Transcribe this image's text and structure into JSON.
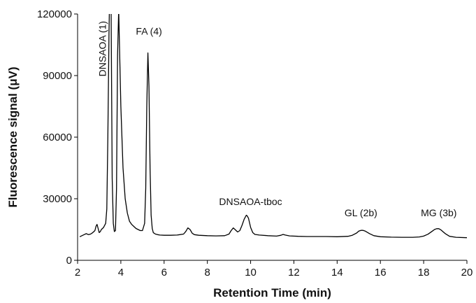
{
  "chart_data": {
    "type": "line",
    "title": "",
    "xlabel": "Retention Time (min)",
    "ylabel": "Fluorescence signal (μV)",
    "xlim": [
      2,
      20
    ],
    "ylim": [
      0,
      120000
    ],
    "x_ticks": [
      2,
      4,
      6,
      8,
      10,
      12,
      14,
      16,
      18,
      20
    ],
    "y_ticks": [
      0,
      30000,
      60000,
      90000,
      120000
    ],
    "x_tick_labels": [
      "2",
      "4",
      "6",
      "8",
      "10",
      "12",
      "14",
      "16",
      "18",
      "20"
    ],
    "y_tick_labels": [
      "0",
      "30000",
      "60000",
      "90000",
      "120000"
    ],
    "grid": false,
    "legend": "none",
    "line_color": "#000000",
    "series": [
      {
        "x": [
          2.1,
          2.2,
          2.3,
          2.4,
          2.5,
          2.6,
          2.7,
          2.8,
          2.85,
          2.9,
          2.95,
          3.0,
          3.05,
          3.1,
          3.2,
          3.3,
          3.35,
          3.4,
          3.45,
          3.5,
          3.55,
          3.6,
          3.65,
          3.7,
          3.75,
          3.8,
          3.85,
          3.9,
          4.0,
          4.1,
          4.2,
          4.3,
          4.4,
          4.5,
          4.6,
          4.7,
          4.8,
          4.9,
          5.0,
          5.1,
          5.15,
          5.2,
          5.25,
          5.3,
          5.35,
          5.4,
          5.45,
          5.5,
          5.6,
          5.7,
          5.8,
          6.0,
          6.3,
          6.6,
          6.9,
          7.0,
          7.1,
          7.2,
          7.3,
          7.4,
          7.6,
          8.0,
          8.4,
          8.8,
          9.0,
          9.1,
          9.2,
          9.3,
          9.4,
          9.5,
          9.6,
          9.7,
          9.8,
          9.85,
          9.9,
          10.0,
          10.1,
          10.2,
          10.4,
          10.8,
          11.2,
          11.4,
          11.5,
          11.6,
          11.8,
          12.2,
          12.6,
          13.0,
          13.5,
          14.0,
          14.5,
          14.7,
          14.9,
          15.0,
          15.1,
          15.2,
          15.3,
          15.5,
          15.7,
          16.0,
          16.5,
          17.0,
          17.5,
          17.8,
          18.0,
          18.2,
          18.4,
          18.5,
          18.6,
          18.7,
          18.8,
          19.0,
          19.2,
          19.5,
          20.0
        ],
        "y": [
          11500,
          12000,
          12500,
          13000,
          12500,
          12800,
          13500,
          14500,
          16500,
          17500,
          15500,
          13500,
          14000,
          15000,
          16000,
          18000,
          25000,
          60000,
          110000,
          140000,
          120000,
          40000,
          18000,
          14000,
          14500,
          35000,
          100000,
          122000,
          75000,
          45000,
          30000,
          23000,
          19000,
          17500,
          16500,
          15500,
          15000,
          14500,
          14500,
          18000,
          35000,
          75000,
          101000,
          85000,
          45000,
          22000,
          15500,
          13500,
          12800,
          12500,
          12300,
          12200,
          12200,
          12300,
          12800,
          14000,
          15800,
          15000,
          13200,
          12500,
          12200,
          12000,
          11900,
          12000,
          12800,
          14500,
          15800,
          14800,
          13800,
          14500,
          17000,
          20000,
          22000,
          21500,
          20500,
          16000,
          13500,
          12600,
          12300,
          12000,
          11800,
          12200,
          12600,
          12300,
          11900,
          11700,
          11600,
          11600,
          11600,
          11500,
          11700,
          12200,
          13300,
          14200,
          14600,
          14600,
          14200,
          13000,
          12000,
          11500,
          11300,
          11200,
          11200,
          11400,
          11800,
          12700,
          14200,
          15000,
          15400,
          15400,
          14800,
          13000,
          11700,
          11200,
          11000
        ]
      }
    ],
    "annotations": [
      {
        "text": "DNSAOA (1)",
        "x": 3.15,
        "y": 120000,
        "rotation": -90
      },
      {
        "text": "FA (4)",
        "x": 5.3,
        "y": 110000
      },
      {
        "text": "DNSAOA-tboc",
        "x": 10.0,
        "y": 27000
      },
      {
        "text": "GL (2b)",
        "x": 15.1,
        "y": 21500
      },
      {
        "text": "MG (3b)",
        "x": 18.7,
        "y": 21500
      }
    ]
  }
}
